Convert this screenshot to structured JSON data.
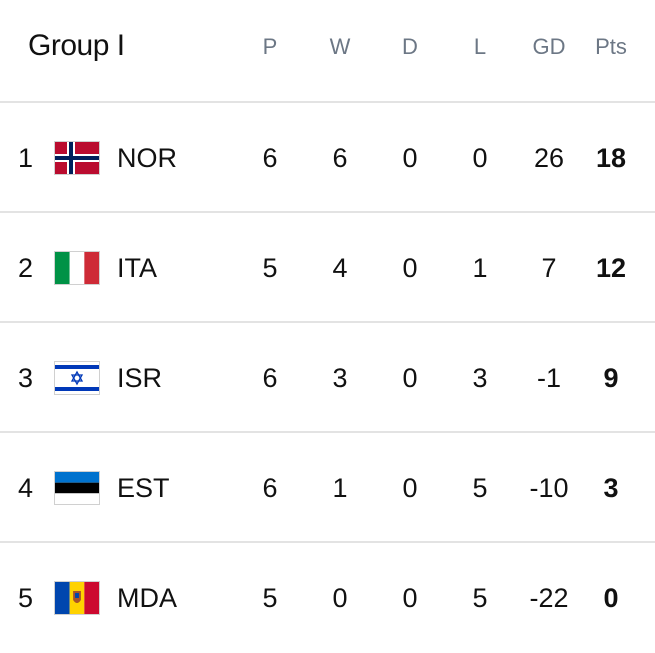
{
  "group_title": "Group I",
  "columns": {
    "played": "P",
    "won": "W",
    "drawn": "D",
    "lost": "L",
    "goal_diff": "GD",
    "points": "Pts"
  },
  "rows": [
    {
      "rank": "1",
      "team": "NOR",
      "flag": "norway-flag-icon",
      "played": "6",
      "won": "6",
      "drawn": "0",
      "lost": "0",
      "goal_diff": "26",
      "points": "18"
    },
    {
      "rank": "2",
      "team": "ITA",
      "flag": "italy-flag-icon",
      "played": "5",
      "won": "4",
      "drawn": "0",
      "lost": "1",
      "goal_diff": "7",
      "points": "12"
    },
    {
      "rank": "3",
      "team": "ISR",
      "flag": "israel-flag-icon",
      "played": "6",
      "won": "3",
      "drawn": "0",
      "lost": "3",
      "goal_diff": "-1",
      "points": "9"
    },
    {
      "rank": "4",
      "team": "EST",
      "flag": "estonia-flag-icon",
      "played": "6",
      "won": "1",
      "drawn": "0",
      "lost": "5",
      "goal_diff": "-10",
      "points": "3"
    },
    {
      "rank": "5",
      "team": "MDA",
      "flag": "moldova-flag-icon",
      "played": "5",
      "won": "0",
      "drawn": "0",
      "lost": "5",
      "goal_diff": "-22",
      "points": "0"
    }
  ],
  "colors": {
    "header_text": "#6c7785",
    "body_text": "#111111",
    "divider": "#e3e3e3"
  }
}
